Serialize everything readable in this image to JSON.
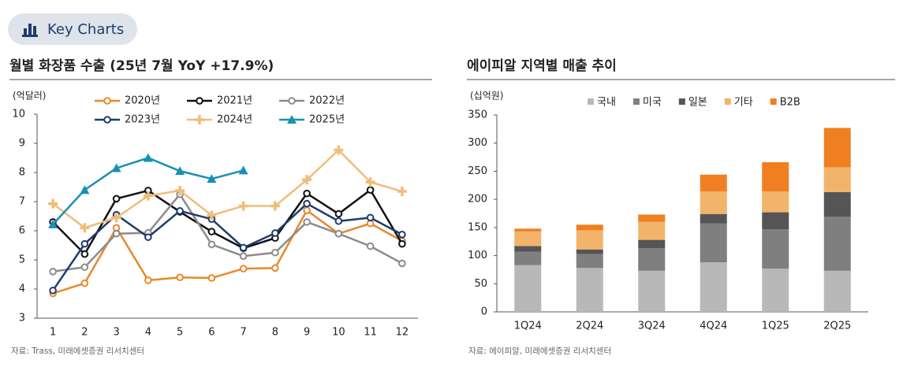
{
  "badge": "Key Charts",
  "chart_data": [
    {
      "type": "line",
      "title": "월별 화장품 수출 (25년 7월 YoY +17.9%)",
      "y_label": "(억달러)",
      "source": "자료: Trass, 미래에셋증권 리서치센터",
      "categories": [
        "1",
        "2",
        "3",
        "4",
        "5",
        "6",
        "7",
        "8",
        "9",
        "10",
        "11",
        "12"
      ],
      "ylim": [
        3,
        10
      ],
      "yticks": [
        3,
        4,
        5,
        6,
        7,
        8,
        9,
        10
      ],
      "series": [
        {
          "name": "2020년",
          "color": "#e8892b",
          "marker": "circle",
          "values": [
            3.85,
            4.2,
            6.1,
            4.3,
            4.4,
            4.38,
            4.7,
            4.72,
            6.7,
            5.9,
            6.25,
            5.65
          ]
        },
        {
          "name": "2021년",
          "color": "#111111",
          "marker": "circle",
          "values": [
            6.3,
            5.2,
            7.1,
            7.38,
            6.65,
            5.97,
            5.4,
            5.75,
            7.28,
            6.58,
            7.4,
            5.55
          ]
        },
        {
          "name": "2022년",
          "color": "#8c8c8c",
          "marker": "circle",
          "values": [
            4.6,
            4.75,
            5.9,
            5.93,
            7.25,
            5.53,
            5.13,
            5.25,
            6.3,
            5.9,
            5.47,
            4.88
          ]
        },
        {
          "name": "2023년",
          "color": "#1f3c6e",
          "marker": "circle",
          "values": [
            3.95,
            5.55,
            6.55,
            5.78,
            6.68,
            6.4,
            5.42,
            5.92,
            6.93,
            6.33,
            6.45,
            5.87
          ]
        },
        {
          "name": "2024년",
          "color": "#f0bd7a",
          "marker": "plus",
          "values": [
            6.93,
            6.1,
            6.45,
            7.2,
            7.38,
            6.53,
            6.85,
            6.85,
            7.75,
            8.77,
            7.67,
            7.35
          ]
        },
        {
          "name": "2025년",
          "color": "#1a8fb5",
          "marker": "triangle",
          "values": [
            6.22,
            7.4,
            8.15,
            8.5,
            8.05,
            7.78,
            8.07,
            null,
            null,
            null,
            null,
            null
          ]
        }
      ]
    },
    {
      "type": "stacked_bar",
      "title": "에이피알 지역별 매출 추이",
      "y_label": "(십억원)",
      "source": "자료: 에이피알, 미래에셋증권 리서치센터",
      "categories": [
        "1Q24",
        "2Q24",
        "3Q24",
        "4Q24",
        "1Q25",
        "2Q25"
      ],
      "ylim": [
        0,
        350
      ],
      "yticks": [
        0,
        50,
        100,
        150,
        200,
        250,
        300,
        350
      ],
      "series": [
        {
          "name": "국내",
          "color": "#b8b8b8",
          "values": [
            83,
            78,
            73,
            88,
            77,
            73
          ]
        },
        {
          "name": "미국",
          "color": "#7f7f7f",
          "values": [
            24,
            25,
            40,
            69,
            70,
            96
          ]
        },
        {
          "name": "일본",
          "color": "#555555",
          "values": [
            10,
            8,
            15,
            17,
            30,
            44
          ]
        },
        {
          "name": "기타",
          "color": "#f2b46a",
          "values": [
            26,
            34,
            32,
            40,
            37,
            44
          ]
        },
        {
          "name": "B2B",
          "color": "#f07f22",
          "values": [
            5,
            10,
            13,
            30,
            52,
            70
          ]
        }
      ]
    }
  ]
}
